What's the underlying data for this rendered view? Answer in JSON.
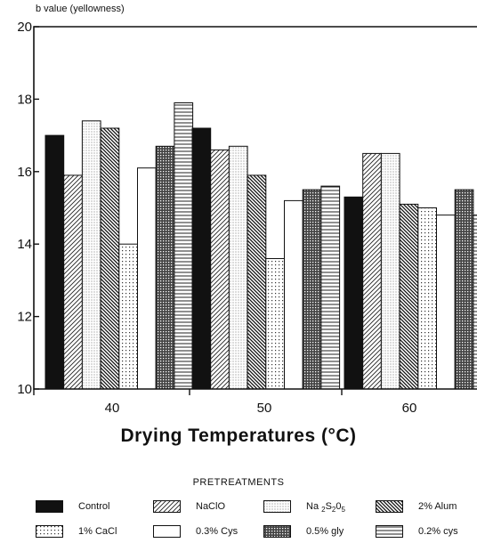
{
  "chart_data": {
    "type": "bar",
    "ylabel": "b value (yellowness)",
    "xlabel": "Drying Temperatures (°C)",
    "categories": [
      "40",
      "50",
      "60"
    ],
    "ylim": [
      10,
      20
    ],
    "yticks": [
      "10",
      "12",
      "14",
      "16",
      "18",
      "20"
    ],
    "legend_title": "PRETREATMENTS",
    "legend_position": "bottom",
    "series": [
      {
        "name": "Control",
        "pattern": "solid",
        "values": [
          17.0,
          17.2,
          15.3
        ]
      },
      {
        "name": "NaClO",
        "pattern": "diagonal-right",
        "values": [
          15.9,
          16.6,
          16.5
        ]
      },
      {
        "name": "Na2S2O5",
        "pattern": "dots",
        "values": [
          17.4,
          16.7,
          16.5
        ]
      },
      {
        "name": "2% Alum",
        "pattern": "diagonal-left",
        "values": [
          17.2,
          15.9,
          15.1
        ]
      },
      {
        "name": "1% CaCl",
        "pattern": "dots-sparse",
        "values": [
          14.0,
          13.6,
          15.0
        ]
      },
      {
        "name": "0.3% Cys",
        "pattern": "empty",
        "values": [
          16.1,
          15.2,
          14.8
        ]
      },
      {
        "name": "0.5% gly",
        "pattern": "crosshatch",
        "values": [
          16.7,
          15.5,
          15.5
        ]
      },
      {
        "name": "0.2% cys",
        "pattern": "horizontal",
        "values": [
          17.9,
          15.6,
          14.8
        ]
      }
    ]
  },
  "legend": [
    {
      "key": "control",
      "label": "Control"
    },
    {
      "key": "naclo",
      "label": "NaClO"
    },
    {
      "key": "na2s2o5",
      "label_parts": [
        "Na ",
        "2",
        "S",
        "2",
        "0",
        "5"
      ]
    },
    {
      "key": "alum",
      "label": "2% Alum"
    },
    {
      "key": "cacl",
      "label": "1% CaCl"
    },
    {
      "key": "cys03",
      "label": "0.3% Cys"
    },
    {
      "key": "gly",
      "label": "0.5% gly"
    },
    {
      "key": "cys02",
      "label": "0.2% cys"
    }
  ]
}
